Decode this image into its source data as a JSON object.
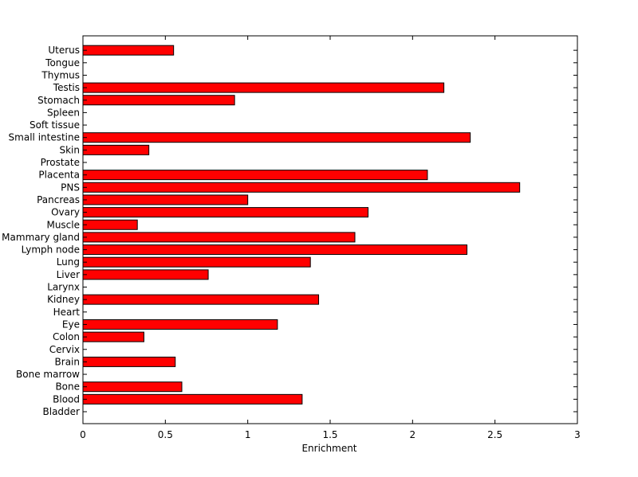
{
  "chart_data": {
    "type": "bar",
    "orientation": "horizontal",
    "title": "",
    "xlabel": "Enrichment",
    "ylabel": "",
    "xlim": [
      0,
      3
    ],
    "x_ticks": [
      "0",
      "0.5",
      "1",
      "1.5",
      "2",
      "2.5",
      "3"
    ],
    "categories": [
      "Bladder",
      "Blood",
      "Bone",
      "Bone marrow",
      "Brain",
      "Cervix",
      "Colon",
      "Eye",
      "Heart",
      "Kidney",
      "Larynx",
      "Liver",
      "Lung",
      "Lymph node",
      "Mammary gland",
      "Muscle",
      "Ovary",
      "Pancreas",
      "PNS",
      "Placenta",
      "Prostate",
      "Skin",
      "Small intestine",
      "Soft tissue",
      "Spleen",
      "Stomach",
      "Testis",
      "Thymus",
      "Tongue",
      "Uterus"
    ],
    "values": [
      0,
      1.33,
      0.6,
      0,
      0.56,
      0,
      0.37,
      1.18,
      0,
      1.43,
      0,
      0.76,
      1.38,
      2.33,
      1.65,
      0.33,
      1.73,
      1.0,
      2.65,
      2.09,
      0,
      0.4,
      2.35,
      0,
      0,
      0.92,
      2.19,
      0,
      0,
      0.55
    ],
    "bar_color": "#ff0000",
    "grid": false,
    "legend": "none"
  }
}
